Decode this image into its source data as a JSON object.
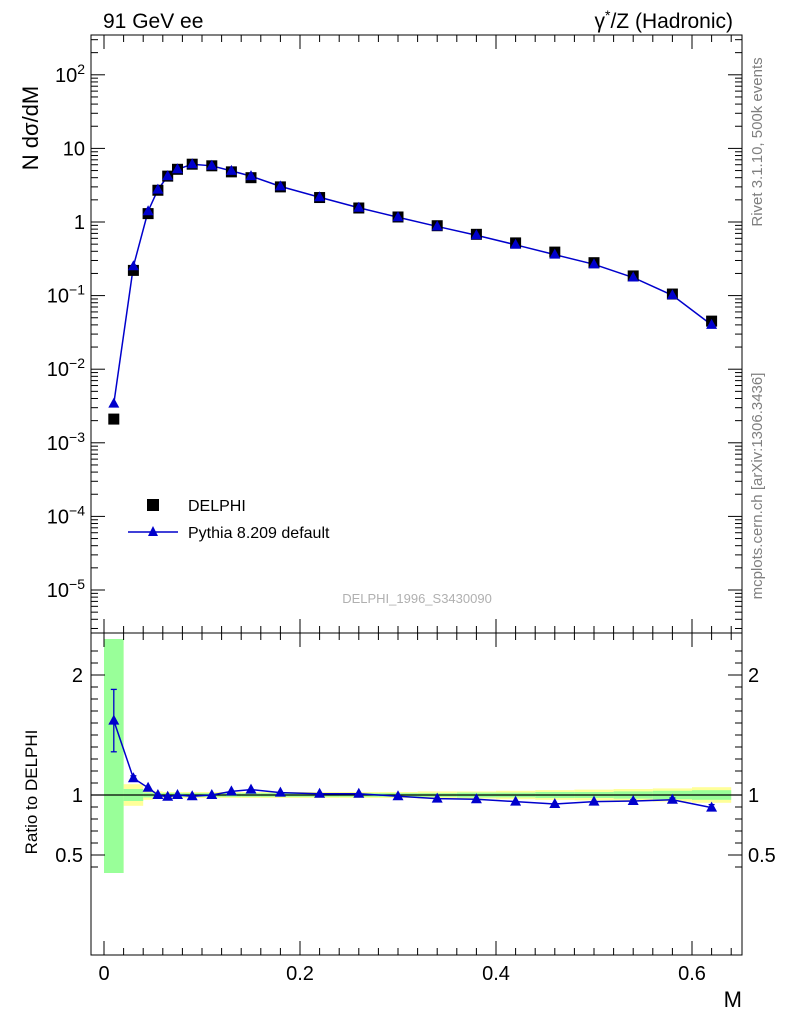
{
  "header": {
    "left": "91 GeV ee",
    "right_base": "γ",
    "right_sup": "*",
    "right_rest": "/Z (Hadronic)"
  },
  "side_text": {
    "rivet": "Rivet 3.1.10,  500k events",
    "mcplots": "mcplots.cern.ch [arXiv:1306.3436]"
  },
  "watermark": "DELPHI_1996_S3430090",
  "chart_data": [
    {
      "type": "scatter",
      "ylabel": "N dσ/dM",
      "xlabel": "M",
      "log_y": true,
      "xlim": [
        -0.02,
        0.65
      ],
      "ylim": [
        3e-06,
        350
      ],
      "y_ticks": [
        {
          "value": 1e-05,
          "base": "10",
          "exp": "−5"
        },
        {
          "value": 0.0001,
          "base": "10",
          "exp": "−4"
        },
        {
          "value": 0.001,
          "base": "10",
          "exp": "−3"
        },
        {
          "value": 0.01,
          "base": "10",
          "exp": "−2"
        },
        {
          "value": 0.1,
          "base": "10",
          "exp": "−1"
        },
        {
          "value": 1,
          "base": "1",
          "exp": ""
        },
        {
          "value": 10,
          "base": "10",
          "exp": ""
        },
        {
          "value": 100,
          "base": "10",
          "exp": "2"
        }
      ],
      "legend_placement": "lower-left",
      "series": [
        {
          "name": "DELPHI",
          "color": "#000000",
          "marker": "square",
          "x": [
            0.01,
            0.03,
            0.045,
            0.055,
            0.065,
            0.075,
            0.09,
            0.11,
            0.13,
            0.15,
            0.18,
            0.22,
            0.26,
            0.3,
            0.34,
            0.38,
            0.42,
            0.46,
            0.5,
            0.54,
            0.58,
            0.62
          ],
          "y": [
            0.0021,
            0.22,
            1.3,
            2.7,
            4.2,
            5.2,
            6.1,
            5.8,
            4.8,
            4.0,
            3.0,
            2.15,
            1.55,
            1.17,
            0.89,
            0.68,
            0.52,
            0.39,
            0.28,
            0.185,
            0.105,
            0.045
          ]
        },
        {
          "name": "Pythia 8.209 default",
          "color": "#0000cc",
          "marker": "triangle",
          "x": [
            0.01,
            0.03,
            0.045,
            0.055,
            0.065,
            0.075,
            0.09,
            0.11,
            0.13,
            0.15,
            0.18,
            0.22,
            0.26,
            0.3,
            0.34,
            0.38,
            0.42,
            0.46,
            0.5,
            0.54,
            0.58,
            0.62
          ],
          "y": [
            0.0034,
            0.25,
            1.4,
            2.75,
            4.2,
            5.2,
            6.1,
            5.8,
            4.95,
            4.2,
            3.05,
            2.17,
            1.56,
            1.16,
            0.87,
            0.66,
            0.49,
            0.36,
            0.266,
            0.176,
            0.101,
            0.04
          ]
        }
      ]
    },
    {
      "type": "line",
      "ylabel": "Ratio to DELPHI",
      "xlabel": "M",
      "xlim": [
        -0.02,
        0.65
      ],
      "ylim": [
        0.35,
        2.3
      ],
      "y_ticks": [
        0.5,
        1,
        2
      ],
      "x_ticks": [
        0,
        0.2,
        0.4,
        0.6
      ],
      "reference_line": 1,
      "series": [
        {
          "name": "Pythia 8.209 default",
          "color": "#0000cc",
          "x": [
            0.01,
            0.03,
            0.045,
            0.055,
            0.065,
            0.075,
            0.09,
            0.11,
            0.13,
            0.15,
            0.18,
            0.22,
            0.26,
            0.3,
            0.34,
            0.38,
            0.42,
            0.46,
            0.5,
            0.54,
            0.58,
            0.62
          ],
          "y": [
            1.62,
            1.14,
            1.06,
            1.0,
            0.985,
            1.0,
            0.99,
            1.0,
            1.03,
            1.045,
            1.02,
            1.01,
            1.01,
            0.99,
            0.97,
            0.965,
            0.945,
            0.925,
            0.945,
            0.95,
            0.96,
            0.895
          ],
          "err": [
            0.26,
            0.02,
            0.01,
            0.005,
            0.005,
            0.005,
            0.005,
            0.005,
            0.005,
            0.005,
            0.005,
            0.005,
            0.005,
            0.005,
            0.005,
            0.005,
            0.008,
            0.01,
            0.01,
            0.012,
            0.015,
            0.025
          ]
        }
      ],
      "bands": {
        "edges": [
          0.0,
          0.02,
          0.04,
          0.05,
          0.06,
          0.07,
          0.08,
          0.1,
          0.12,
          0.14,
          0.16,
          0.2,
          0.24,
          0.28,
          0.32,
          0.36,
          0.4,
          0.44,
          0.48,
          0.52,
          0.56,
          0.6,
          0.64
        ],
        "yellow": [
          [
            0.35,
            2.3
          ],
          [
            0.91,
            1.09
          ],
          [
            0.96,
            1.04
          ],
          [
            0.97,
            1.03
          ],
          [
            0.975,
            1.025
          ],
          [
            0.975,
            1.025
          ],
          [
            0.975,
            1.025
          ],
          [
            0.975,
            1.025
          ],
          [
            0.975,
            1.025
          ],
          [
            0.975,
            1.025
          ],
          [
            0.975,
            1.025
          ],
          [
            0.975,
            1.025
          ],
          [
            0.975,
            1.025
          ],
          [
            0.975,
            1.025
          ],
          [
            0.97,
            1.03
          ],
          [
            0.97,
            1.03
          ],
          [
            0.965,
            1.035
          ],
          [
            0.96,
            1.04
          ],
          [
            0.955,
            1.045
          ],
          [
            0.95,
            1.05
          ],
          [
            0.945,
            1.055
          ],
          [
            0.935,
            1.065
          ]
        ],
        "green": [
          [
            0.35,
            2.3
          ],
          [
            0.95,
            1.05
          ],
          [
            0.98,
            1.02
          ],
          [
            0.985,
            1.015
          ],
          [
            0.985,
            1.015
          ],
          [
            0.985,
            1.015
          ],
          [
            0.985,
            1.015
          ],
          [
            0.985,
            1.015
          ],
          [
            0.985,
            1.015
          ],
          [
            0.985,
            1.015
          ],
          [
            0.985,
            1.015
          ],
          [
            0.985,
            1.015
          ],
          [
            0.985,
            1.015
          ],
          [
            0.985,
            1.015
          ],
          [
            0.985,
            1.015
          ],
          [
            0.98,
            1.02
          ],
          [
            0.98,
            1.02
          ],
          [
            0.975,
            1.025
          ],
          [
            0.975,
            1.025
          ],
          [
            0.97,
            1.03
          ],
          [
            0.965,
            1.035
          ],
          [
            0.96,
            1.04
          ]
        ]
      }
    }
  ],
  "colors": {
    "yellow_band": "#ffff99",
    "green_band": "#99ff99",
    "pythia": "#0000cc",
    "data": "#000000"
  }
}
